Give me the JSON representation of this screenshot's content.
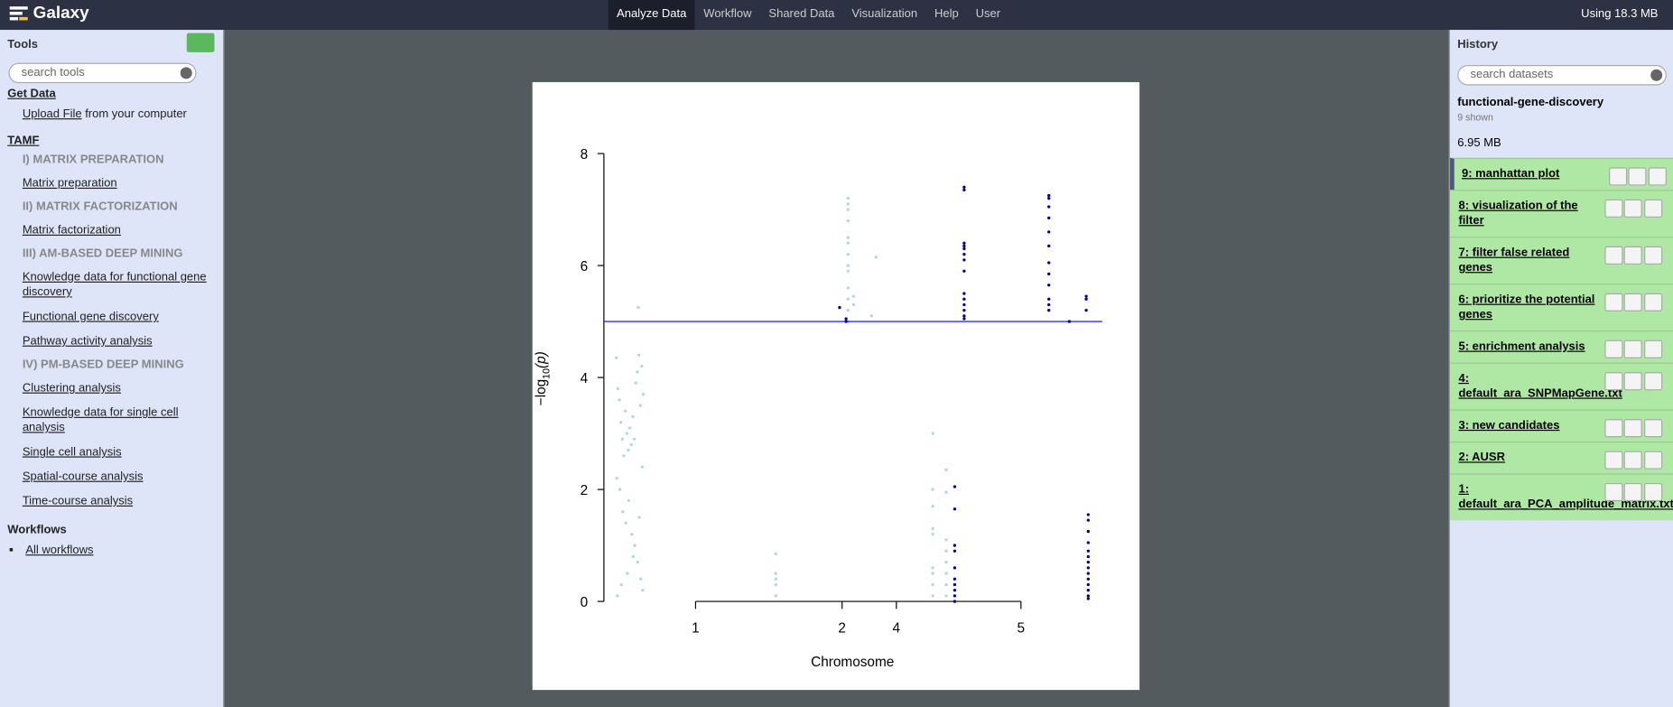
{
  "navbar": {
    "brand": "Galaxy",
    "menu": [
      "Analyze Data",
      "Workflow",
      "Shared Data",
      "Visualization",
      "Help",
      "User"
    ],
    "quota": "Using 18.3 MB"
  },
  "tools": {
    "title": "Tools",
    "search": "search tools",
    "get_data": {
      "title": "Get Data",
      "upload_link": "Upload File",
      "upload_rest": "from your computer"
    },
    "section": {
      "title": "TAMF",
      "groups": [
        {
          "heading": "I) MATRIX PREPARATION",
          "tools": [
            "Matrix preparation"
          ]
        },
        {
          "heading": "II) MATRIX FACTORIZATION",
          "tools": [
            "Matrix factorization"
          ]
        },
        {
          "heading": "III) AM-BASED DEEP MINING",
          "tools": [
            "Knowledge data for functional gene discovery",
            "Functional gene discovery",
            "Pathway activity analysis"
          ]
        },
        {
          "heading": "IV) PM-BASED DEEP MINING",
          "tools": [
            "Clustering analysis",
            "Knowledge data for single cell analysis",
            "Single cell analysis",
            "Spatial-course analysis",
            "Time-course analysis"
          ]
        }
      ]
    },
    "workflows": {
      "title": "Workflows",
      "link": "All workflows"
    }
  },
  "history": {
    "title": "History",
    "search": "search datasets",
    "name": "functional-gene-discovery",
    "count": "9 shown",
    "size": "6.95 MB",
    "items": [
      "9: manhattan plot",
      "8: visualization of the filter",
      "7: filter false related genes",
      "6: prioritize the potential genes",
      "5: enrichment analysis",
      "4: default_ara_SNPMapGene.txt",
      "3: new candidates",
      "2: AUSR",
      "1: default_ara_PCA_amplitude_matrix.txt"
    ]
  },
  "chart_data": {
    "type": "scatter",
    "x_label": "Chromosome",
    "y_label": [
      "−log",
      "10",
      "(p)"
    ],
    "xlim": [
      0,
      100
    ],
    "ylim": [
      0,
      8
    ],
    "yticks": [
      0,
      2,
      4,
      6,
      8
    ],
    "xticks": [
      {
        "value": 18.4,
        "label": "1"
      },
      {
        "value": 47.8,
        "label": "2"
      },
      {
        "value": 58.7,
        "label": "4"
      },
      {
        "value": 83.7,
        "label": "5"
      }
    ],
    "threshold": 5,
    "threshold_color": "#0000ff",
    "series": [
      {
        "color": "#add8e6",
        "x": [
          2.5,
          2.8,
          3.1,
          3.4,
          3.7,
          4.0,
          4.3,
          4.6,
          4.9,
          5.2,
          5.5,
          5.8,
          6.1,
          6.4,
          6.7,
          7.0,
          7.3,
          7.6,
          7.9,
          2.6,
          3.2,
          3.8,
          4.4,
          5.0,
          5.6,
          6.2,
          6.8,
          7.4,
          7.8,
          2.7,
          3.5,
          4.7,
          5.9,
          7.1,
          7.7,
          6.9,
          34.5,
          34.5,
          34.5,
          34.5,
          34.5,
          49.0,
          49.0,
          49.0,
          49.0,
          49.0,
          49.0,
          49.0,
          49.0,
          49.0,
          49.0,
          49.0,
          49.0,
          49.0,
          50.1,
          50.1,
          53.7,
          54.6,
          66.0,
          66.0,
          66.0,
          66.0,
          66.0,
          66.0,
          66.0,
          66.0,
          66.0,
          68.7,
          68.7,
          68.7,
          68.7,
          68.7,
          68.7,
          68.7,
          68.7
        ],
        "values": [
          4.35,
          3.8,
          3.6,
          3.2,
          2.9,
          2.6,
          3.4,
          3.0,
          2.7,
          3.1,
          2.8,
          3.3,
          2.9,
          3.9,
          4.1,
          4.4,
          3.5,
          4.2,
          3.7,
          2.2,
          2.0,
          1.6,
          1.4,
          1.8,
          1.2,
          1.0,
          0.7,
          0.4,
          0.2,
          0.1,
          0.3,
          0.5,
          0.8,
          1.5,
          2.4,
          5.25,
          0.85,
          0.5,
          0.4,
          0.3,
          0.1,
          7.2,
          7.1,
          7.0,
          6.8,
          6.5,
          6.4,
          6.2,
          6.0,
          5.9,
          5.6,
          5.4,
          5.2,
          5.0,
          5.45,
          5.3,
          5.1,
          6.15,
          3.0,
          2.0,
          1.7,
          1.3,
          1.2,
          0.6,
          0.5,
          0.3,
          0.1,
          2.35,
          1.95,
          1.1,
          0.9,
          0.7,
          0.5,
          0.3,
          0.1
        ]
      },
      {
        "color": "#00008b",
        "x": [
          47.3,
          48.6,
          48.6,
          70.4,
          70.4,
          70.4,
          70.4,
          70.4,
          70.4,
          70.4,
          70.4,
          70.4,
          70.4,
          72.3,
          72.3,
          72.3,
          72.3,
          72.3,
          72.3,
          72.3,
          72.3,
          72.3,
          72.3,
          72.3,
          72.3,
          72.3,
          72.3,
          89.3,
          89.3,
          89.3,
          89.3,
          89.3,
          89.3,
          89.3,
          89.3,
          89.3,
          89.3,
          89.3,
          89.3,
          93.4,
          96.8,
          96.8,
          96.8,
          97.2,
          97.2,
          97.2,
          97.2,
          97.2,
          97.2,
          97.2,
          97.2,
          97.2,
          97.2,
          97.2,
          97.2,
          97.2,
          97.2
        ],
        "values": [
          5.25,
          5.05,
          5.0,
          2.05,
          1.65,
          1.0,
          0.9,
          0.6,
          0.4,
          0.3,
          0.2,
          0.1,
          0.0,
          7.4,
          7.35,
          6.4,
          6.35,
          6.3,
          6.2,
          6.1,
          5.9,
          5.5,
          5.4,
          5.3,
          5.2,
          5.1,
          5.05,
          7.25,
          7.2,
          7.05,
          6.85,
          6.6,
          6.35,
          6.05,
          5.85,
          5.65,
          5.4,
          5.3,
          5.2,
          5.0,
          5.45,
          5.4,
          5.2,
          1.55,
          1.45,
          1.25,
          1.05,
          0.9,
          0.8,
          0.7,
          0.6,
          0.5,
          0.4,
          0.3,
          0.2,
          0.1,
          0.05
        ]
      }
    ]
  }
}
